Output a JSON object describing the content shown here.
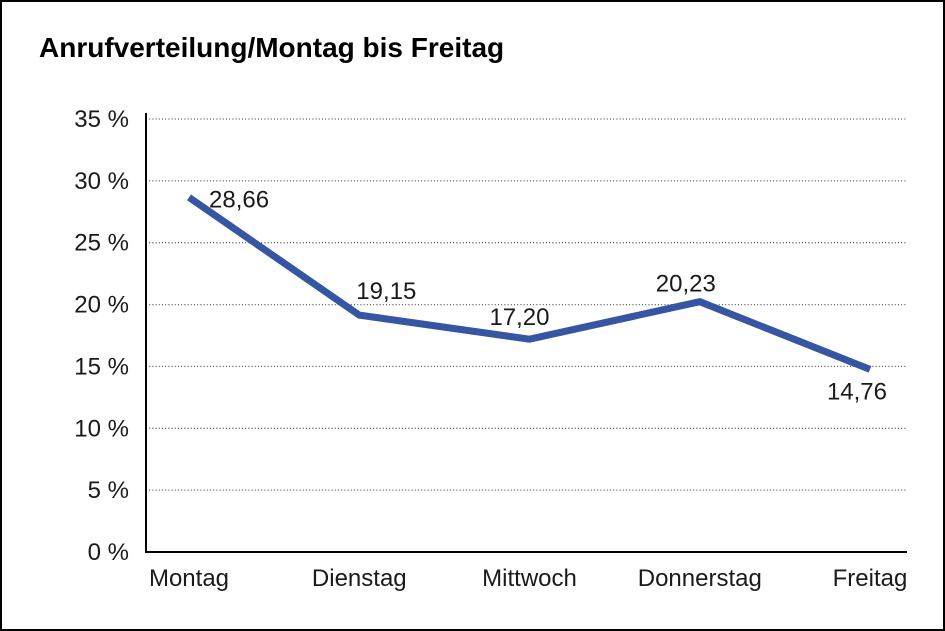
{
  "frame": {
    "background": "#ffffff",
    "border_color": "#000000"
  },
  "chart_data": {
    "type": "line",
    "title": "Anrufverteilung/Montag bis Freitag",
    "categories": [
      "Montag",
      "Dienstag",
      "Mittwoch",
      "Donnerstag",
      "Freitag"
    ],
    "series": [
      {
        "name": "Anrufverteilung",
        "values": [
          28.66,
          19.15,
          17.2,
          20.23,
          14.76
        ]
      }
    ],
    "point_labels": [
      "28,66",
      "19,15",
      "17,20",
      "20,23",
      "14,76"
    ],
    "xlabel": "",
    "ylabel": "",
    "ylim": [
      0,
      35
    ],
    "y_tick_step": 5,
    "y_ticks": [
      "0 %",
      "5 %",
      "10 %",
      "15 %",
      "20 %",
      "25 %",
      "30 %",
      "35 %"
    ],
    "grid": "horizontal-dotted",
    "legend_position": "none",
    "line_color": "#3655A3",
    "grid_color": "#595959",
    "axis_color": "#000000",
    "text_color": "#1a1a1a"
  }
}
